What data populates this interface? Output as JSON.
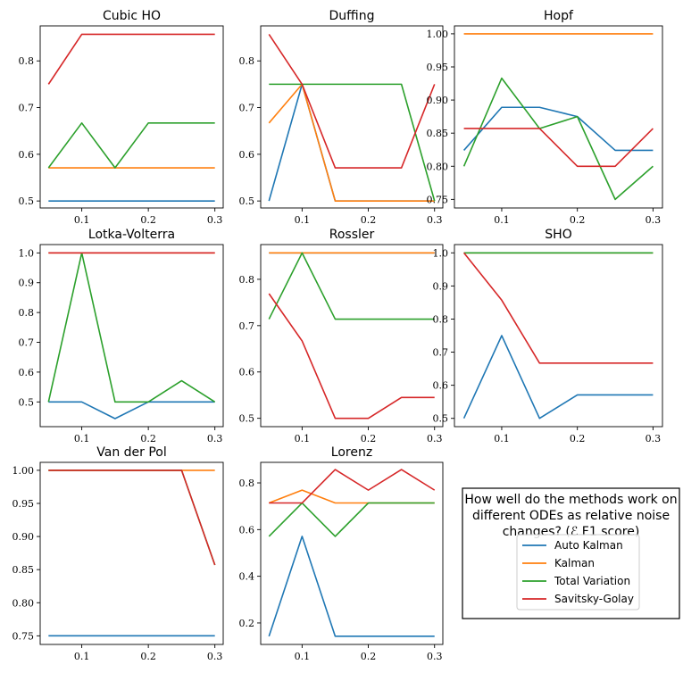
{
  "legend": {
    "description_line1": "How well do the methods work on",
    "description_line2": "different ODEs as relative noise",
    "description_line3": "changes? (ℰ F1 score)",
    "entries": [
      {
        "name": "Auto Kalman",
        "color": "#1f77b4"
      },
      {
        "name": "Kalman",
        "color": "#ff7f0e"
      },
      {
        "name": "Total Variation",
        "color": "#2ca02c"
      },
      {
        "name": "Savitsky-Golay",
        "color": "#d62728"
      }
    ]
  },
  "chart_data": [
    {
      "type": "line",
      "title": "Cubic HO",
      "x": [
        0.05,
        0.1,
        0.15,
        0.2,
        0.25,
        0.3
      ],
      "xlim": [
        0.0375,
        0.3125
      ],
      "ylim": [
        0.485,
        0.875
      ],
      "xticks": [
        0.1,
        0.2,
        0.3
      ],
      "xtick_labels": [
        "0.1",
        "0.2",
        "0.3"
      ],
      "yticks": [
        0.5,
        0.6,
        0.7,
        0.8
      ],
      "ytick_labels": [
        "0.5",
        "0.6",
        "0.7",
        "0.8"
      ],
      "series": [
        {
          "name": "Auto Kalman",
          "values": [
            0.5,
            0.5,
            0.5,
            0.5,
            0.5,
            0.5
          ]
        },
        {
          "name": "Kalman",
          "values": [
            0.571,
            0.571,
            0.571,
            0.571,
            0.571,
            0.571
          ]
        },
        {
          "name": "Total Variation",
          "values": [
            0.571,
            0.667,
            0.571,
            0.667,
            0.667,
            0.667
          ]
        },
        {
          "name": "Savitsky-Golay",
          "values": [
            0.75,
            0.857,
            0.857,
            0.857,
            0.857,
            0.857
          ]
        }
      ]
    },
    {
      "type": "line",
      "title": "Duffing",
      "x": [
        0.05,
        0.1,
        0.15,
        0.2,
        0.25,
        0.3
      ],
      "xlim": [
        0.0375,
        0.3125
      ],
      "ylim": [
        0.485,
        0.875
      ],
      "xticks": [
        0.1,
        0.2,
        0.3
      ],
      "xtick_labels": [
        "0.1",
        "0.2",
        "0.3"
      ],
      "yticks": [
        0.5,
        0.6,
        0.7,
        0.8
      ],
      "ytick_labels": [
        "0.5",
        "0.6",
        "0.7",
        "0.8"
      ],
      "series": [
        {
          "name": "Auto Kalman",
          "values": [
            0.5,
            0.75,
            0.5,
            0.5,
            0.5,
            0.5
          ]
        },
        {
          "name": "Kalman",
          "values": [
            0.667,
            0.75,
            0.5,
            0.5,
            0.5,
            0.5
          ]
        },
        {
          "name": "Total Variation",
          "values": [
            0.75,
            0.75,
            0.75,
            0.75,
            0.75,
            0.5
          ]
        },
        {
          "name": "Savitsky-Golay",
          "values": [
            0.857,
            0.75,
            0.571,
            0.571,
            0.571,
            0.75
          ]
        }
      ]
    },
    {
      "type": "line",
      "title": "Hopf",
      "x": [
        0.05,
        0.1,
        0.15,
        0.2,
        0.25,
        0.3
      ],
      "xlim": [
        0.0375,
        0.3125
      ],
      "ylim": [
        0.737,
        1.012
      ],
      "xticks": [
        0.1,
        0.2,
        0.3
      ],
      "xtick_labels": [
        "0.1",
        "0.2",
        "0.3"
      ],
      "yticks": [
        0.75,
        0.8,
        0.85,
        0.9,
        0.95,
        1.0
      ],
      "ytick_labels": [
        "0.75",
        "0.80",
        "0.85",
        "0.90",
        "0.95",
        "1.00"
      ],
      "series": [
        {
          "name": "Auto Kalman",
          "values": [
            0.824,
            0.889,
            0.889,
            0.875,
            0.824,
            0.824
          ]
        },
        {
          "name": "Kalman",
          "values": [
            1.0,
            1.0,
            1.0,
            1.0,
            1.0,
            1.0
          ]
        },
        {
          "name": "Total Variation",
          "values": [
            0.8,
            0.933,
            0.857,
            0.875,
            0.75,
            0.8
          ]
        },
        {
          "name": "Savitsky-Golay",
          "values": [
            0.857,
            0.857,
            0.857,
            0.8,
            0.8,
            0.857
          ]
        }
      ]
    },
    {
      "type": "line",
      "title": "Lotka-Volterra",
      "x": [
        0.05,
        0.1,
        0.15,
        0.2,
        0.25,
        0.3
      ],
      "xlim": [
        0.0375,
        0.3125
      ],
      "ylim": [
        0.417,
        1.028
      ],
      "xticks": [
        0.1,
        0.2,
        0.3
      ],
      "xtick_labels": [
        "0.1",
        "0.2",
        "0.3"
      ],
      "yticks": [
        0.5,
        0.6,
        0.7,
        0.8,
        0.9,
        1.0
      ],
      "ytick_labels": [
        "0.5",
        "0.6",
        "0.7",
        "0.8",
        "0.9",
        "1.0"
      ],
      "series": [
        {
          "name": "Auto Kalman",
          "values": [
            0.5,
            0.5,
            0.444,
            0.5,
            0.5,
            0.5
          ]
        },
        {
          "name": "Kalman",
          "values": [
            1.0,
            1.0,
            1.0,
            1.0,
            1.0,
            1.0
          ]
        },
        {
          "name": "Total Variation",
          "values": [
            0.5,
            1.0,
            0.5,
            0.5,
            0.571,
            0.5
          ]
        },
        {
          "name": "Savitsky-Golay",
          "values": [
            1.0,
            1.0,
            1.0,
            1.0,
            1.0,
            1.0
          ]
        }
      ]
    },
    {
      "type": "line",
      "title": "Rossler",
      "x": [
        0.05,
        0.1,
        0.15,
        0.2,
        0.25,
        0.3
      ],
      "xlim": [
        0.0375,
        0.3125
      ],
      "ylim": [
        0.482,
        0.875
      ],
      "xticks": [
        0.1,
        0.2,
        0.3
      ],
      "xtick_labels": [
        "0.1",
        "0.2",
        "0.3"
      ],
      "yticks": [
        0.5,
        0.6,
        0.7,
        0.8
      ],
      "ytick_labels": [
        "0.5",
        "0.6",
        "0.7",
        "0.8"
      ],
      "series": [
        {
          "name": "Auto Kalman",
          "values": [
            0.857,
            0.857,
            0.857,
            0.857,
            0.857,
            0.857
          ]
        },
        {
          "name": "Kalman",
          "values": [
            0.857,
            0.857,
            0.857,
            0.857,
            0.857,
            0.857
          ]
        },
        {
          "name": "Total Variation",
          "values": [
            0.714,
            0.857,
            0.714,
            0.714,
            0.714,
            0.714
          ]
        },
        {
          "name": "Savitsky-Golay",
          "values": [
            0.769,
            0.667,
            0.5,
            0.5,
            0.545,
            0.545
          ]
        }
      ]
    },
    {
      "type": "line",
      "title": "SHO",
      "x": [
        0.05,
        0.1,
        0.15,
        0.2,
        0.25,
        0.3
      ],
      "xlim": [
        0.0375,
        0.3125
      ],
      "ylim": [
        0.475,
        1.025
      ],
      "xticks": [
        0.1,
        0.2,
        0.3
      ],
      "xtick_labels": [
        "0.1",
        "0.2",
        "0.3"
      ],
      "yticks": [
        0.5,
        0.6,
        0.7,
        0.8,
        0.9,
        1.0
      ],
      "ytick_labels": [
        "0.5",
        "0.6",
        "0.7",
        "0.8",
        "0.9",
        "1.0"
      ],
      "series": [
        {
          "name": "Auto Kalman",
          "values": [
            0.5,
            0.75,
            0.5,
            0.571,
            0.571,
            0.571
          ]
        },
        {
          "name": "Kalman",
          "values": [
            1.0,
            1.0,
            1.0,
            1.0,
            1.0,
            1.0
          ]
        },
        {
          "name": "Total Variation",
          "values": [
            1.0,
            1.0,
            1.0,
            1.0,
            1.0,
            1.0
          ]
        },
        {
          "name": "Savitsky-Golay",
          "values": [
            1.0,
            0.857,
            0.667,
            0.667,
            0.667,
            0.667
          ]
        }
      ]
    },
    {
      "type": "line",
      "title": "Van der Pol",
      "x": [
        0.05,
        0.1,
        0.15,
        0.2,
        0.25,
        0.3
      ],
      "xlim": [
        0.0375,
        0.3125
      ],
      "ylim": [
        0.737,
        1.012
      ],
      "xticks": [
        0.1,
        0.2,
        0.3
      ],
      "xtick_labels": [
        "0.1",
        "0.2",
        "0.3"
      ],
      "yticks": [
        0.75,
        0.8,
        0.85,
        0.9,
        0.95,
        1.0
      ],
      "ytick_labels": [
        "0.75",
        "0.80",
        "0.85",
        "0.90",
        "0.95",
        "1.00"
      ],
      "series": [
        {
          "name": "Auto Kalman",
          "values": [
            0.75,
            0.75,
            0.75,
            0.75,
            0.75,
            0.75
          ]
        },
        {
          "name": "Kalman",
          "values": [
            1.0,
            1.0,
            1.0,
            1.0,
            1.0,
            1.0
          ]
        },
        {
          "name": "Total Variation",
          "values": [
            1.0,
            1.0,
            1.0,
            1.0,
            1.0,
            0.857
          ]
        },
        {
          "name": "Savitsky-Golay",
          "values": [
            1.0,
            1.0,
            1.0,
            1.0,
            1.0,
            0.857
          ]
        }
      ]
    },
    {
      "type": "line",
      "title": "Lorenz",
      "x": [
        0.05,
        0.1,
        0.15,
        0.2,
        0.25,
        0.3
      ],
      "xlim": [
        0.0375,
        0.3125
      ],
      "ylim": [
        0.108,
        0.888
      ],
      "xticks": [
        0.1,
        0.2,
        0.3
      ],
      "xtick_labels": [
        "0.1",
        "0.2",
        "0.3"
      ],
      "yticks": [
        0.2,
        0.4,
        0.6,
        0.8
      ],
      "ytick_labels": [
        "0.2",
        "0.4",
        "0.6",
        "0.8"
      ],
      "series": [
        {
          "name": "Auto Kalman",
          "values": [
            0.143,
            0.571,
            0.143,
            0.143,
            0.143,
            0.143
          ]
        },
        {
          "name": "Kalman",
          "values": [
            0.714,
            0.769,
            0.714,
            0.714,
            0.714,
            0.714
          ]
        },
        {
          "name": "Total Variation",
          "values": [
            0.571,
            0.714,
            0.571,
            0.714,
            0.714,
            0.714
          ]
        },
        {
          "name": "Savitsky-Golay",
          "values": [
            0.714,
            0.714,
            0.857,
            0.769,
            0.857,
            0.769
          ]
        }
      ]
    }
  ]
}
